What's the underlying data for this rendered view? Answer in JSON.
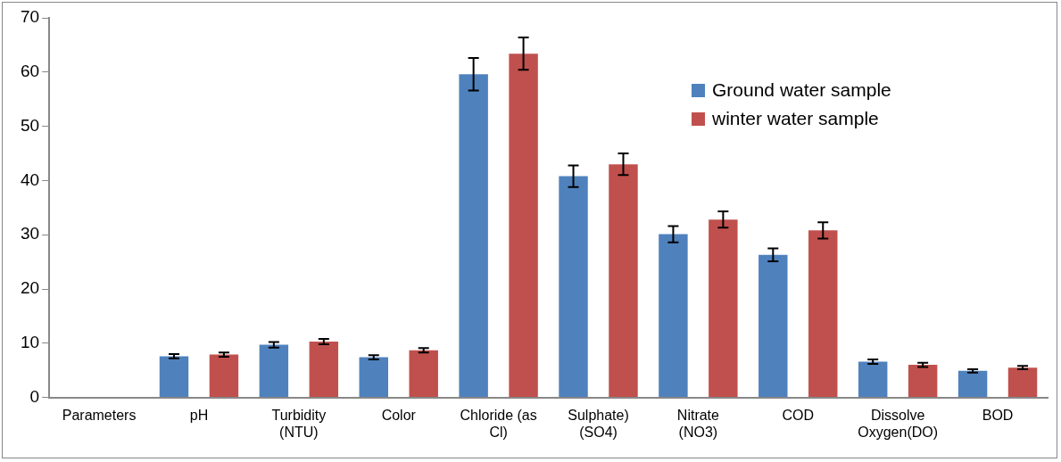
{
  "chart_data": {
    "type": "bar",
    "categories": [
      "Parameters",
      "pH",
      "Turbidity (NTU)",
      "Color",
      "Chloride (as Cl)",
      "Sulphate) (SO4)",
      "Nitrate (NO3)",
      "COD",
      "Dissolve Oxygen(DO)",
      "BOD"
    ],
    "series": [
      {
        "name": "Ground water sample",
        "color": "#4f81bd",
        "values": [
          0,
          7.6,
          9.7,
          7.4,
          59.6,
          40.8,
          30.1,
          26.3,
          6.6,
          4.9
        ],
        "errors": [
          null,
          0.4,
          0.5,
          0.4,
          3,
          2,
          1.5,
          1.2,
          0.4,
          0.3
        ]
      },
      {
        "name": "winter water sample",
        "color": "#c0504d",
        "values": [
          0,
          7.9,
          10.3,
          8.7,
          63.4,
          43,
          32.8,
          30.8,
          6,
          5.5
        ],
        "errors": [
          null,
          0.4,
          0.5,
          0.4,
          3,
          2,
          1.5,
          1.5,
          0.4,
          0.3
        ]
      }
    ],
    "ylim": [
      0,
      70
    ],
    "yticks": [
      0,
      10,
      20,
      30,
      40,
      50,
      60,
      70
    ],
    "grid": false,
    "legend": "top right"
  }
}
